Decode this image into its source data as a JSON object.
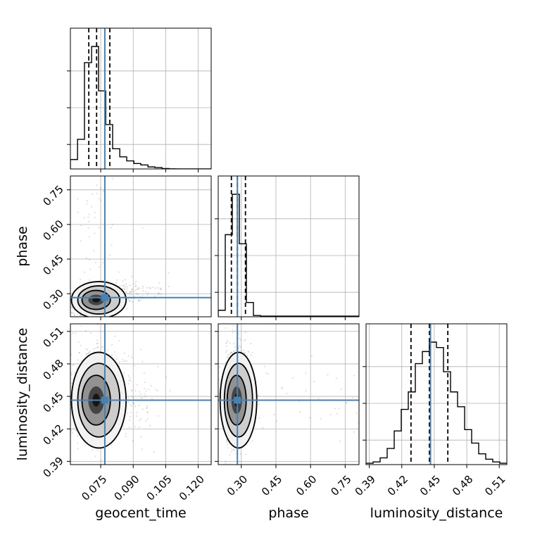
{
  "chart_data": {
    "type": "corner",
    "parameters": [
      "geocent_time",
      "phase",
      "luminosity_distance"
    ],
    "axis_labels": {
      "geocent_time": "geocent_time",
      "phase": "phase",
      "luminosity_distance": "luminosity_distance"
    },
    "ranges": {
      "geocent_time": [
        0.061,
        0.126
      ],
      "phase": [
        0.2,
        0.81
      ],
      "luminosity_distance": [
        0.387,
        0.517
      ]
    },
    "ticks": {
      "geocent_time": [
        "0.075",
        "0.090",
        "0.105",
        "0.120"
      ],
      "phase": [
        "0.30",
        "0.45",
        "0.60",
        "0.75"
      ],
      "luminosity_distance": [
        "0.39",
        "0.42",
        "0.45",
        "0.48",
        "0.51"
      ]
    },
    "truths": {
      "geocent_time": 0.0769,
      "phase": 0.283,
      "luminosity_distance": 0.4465
    },
    "quantiles": {
      "geocent_time": [
        0.0695,
        0.0731,
        0.0792
      ],
      "phase": [
        0.257,
        0.283,
        0.318
      ],
      "luminosity_distance": [
        0.4285,
        0.4455,
        0.4625
      ]
    },
    "histograms": {
      "geocent_time": {
        "bin_edges": [
          0.061,
          0.0643,
          0.0675,
          0.0708,
          0.074,
          0.0773,
          0.0805,
          0.0838,
          0.087,
          0.0903,
          0.0935,
          0.0968,
          0.1,
          0.1033,
          0.1065,
          0.1098,
          0.113,
          0.1163,
          0.1195,
          0.1228,
          0.126
        ],
        "counts": [
          0.07,
          0.22,
          0.79,
          0.91,
          0.58,
          0.33,
          0.15,
          0.09,
          0.06,
          0.04,
          0.03,
          0.015,
          0.01,
          0.003,
          0.001,
          0,
          0,
          0,
          0,
          0
        ]
      },
      "phase": {
        "bin_edges": [
          0.2,
          0.2305,
          0.261,
          0.2915,
          0.322,
          0.3525,
          0.383,
          0.4135,
          0.444,
          0.4745,
          0.505,
          0.5355,
          0.566,
          0.5965,
          0.627,
          0.6575,
          0.688,
          0.7185,
          0.749,
          0.7795,
          0.81
        ],
        "counts": [
          0.05,
          0.63,
          0.94,
          0.56,
          0.11,
          0.01,
          0.005,
          0.005,
          0.005,
          0.005,
          0.005,
          0.005,
          0.005,
          0.005,
          0.005,
          0.005,
          0.005,
          0.005,
          0.005,
          0.005
        ]
      },
      "luminosity_distance": {
        "bin_edges": [
          0.387,
          0.3935,
          0.4,
          0.4065,
          0.413,
          0.4195,
          0.426,
          0.4325,
          0.439,
          0.4455,
          0.452,
          0.4585,
          0.465,
          0.4715,
          0.478,
          0.4845,
          0.491,
          0.4975,
          0.504,
          0.5105,
          0.517
        ],
        "counts": [
          0.01,
          0.02,
          0.05,
          0.12,
          0.25,
          0.41,
          0.54,
          0.75,
          0.84,
          0.91,
          0.87,
          0.69,
          0.54,
          0.43,
          0.26,
          0.16,
          0.08,
          0.04,
          0.02,
          0.01
        ]
      }
    },
    "correlations": {
      "geocent_time__phase": 0.25,
      "geocent_time__luminosity_distance": 0.05,
      "phase__luminosity_distance": 0.0
    },
    "contour_levels": 3,
    "grid": true
  }
}
